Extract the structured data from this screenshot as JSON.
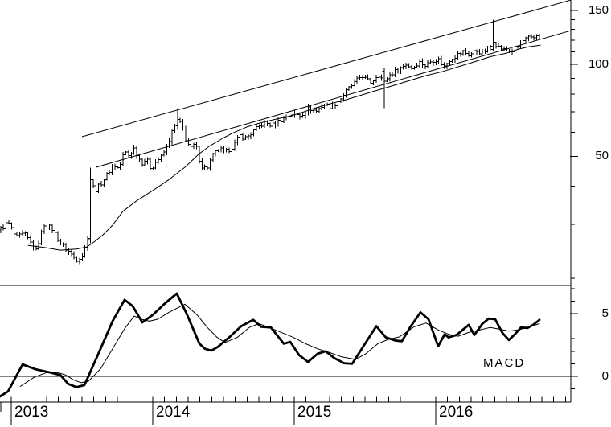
{
  "page": {
    "background": "#ffffff",
    "foreground": "#000000"
  },
  "chart_data": [
    {
      "panel": "price",
      "type": "ohlc",
      "bar_interval": "weekly",
      "x_axis": {
        "range": [
          2012.92,
          2016.955
        ],
        "year_labels": [
          "2013",
          "2014",
          "2015",
          "2016"
        ],
        "year_tick_positions": [
          2013,
          2014,
          2015,
          2016
        ],
        "minor_tick_interval_months": 1
      },
      "y_axis": {
        "side": "right",
        "scale": "log",
        "range": [
          19.35,
          162.2
        ],
        "major_ticks": [
          {
            "value": 50,
            "label": "50"
          },
          {
            "value": 100,
            "label": "100"
          },
          {
            "value": 150,
            "label": "150"
          }
        ],
        "minor_ticks": [
          20,
          30,
          40,
          60,
          70,
          80,
          90,
          110,
          120,
          130,
          140
        ]
      },
      "close_anchors": [
        [
          2012.932,
          29
        ],
        [
          2012.977,
          30.5
        ],
        [
          2013.034,
          27
        ],
        [
          2013.091,
          28
        ],
        [
          2013.176,
          24.5
        ],
        [
          2013.233,
          30
        ],
        [
          2013.29,
          29
        ],
        [
          2013.347,
          26
        ],
        [
          2013.403,
          24.5
        ],
        [
          2013.46,
          23
        ],
        [
          2013.511,
          24
        ],
        [
          2013.54,
          27
        ],
        [
          2013.557,
          42
        ],
        [
          2013.591,
          38.5
        ],
        [
          2013.636,
          41
        ],
        [
          2013.676,
          43.5
        ],
        [
          2013.722,
          47
        ],
        [
          2013.761,
          45.5
        ],
        [
          2013.801,
          52
        ],
        [
          2013.835,
          50
        ],
        [
          2013.864,
          53.5
        ],
        [
          2013.892,
          50.5
        ],
        [
          2013.92,
          47.5
        ],
        [
          2013.955,
          49
        ],
        [
          2013.989,
          45.5
        ],
        [
          2014.023,
          48
        ],
        [
          2014.063,
          50
        ],
        [
          2014.102,
          54
        ],
        [
          2014.142,
          61
        ],
        [
          2014.176,
          66
        ],
        [
          2014.205,
          63
        ],
        [
          2014.233,
          57
        ],
        [
          2014.267,
          53
        ],
        [
          2014.301,
          55
        ],
        [
          2014.341,
          46.5
        ],
        [
          2014.381,
          45.5
        ],
        [
          2014.42,
          50
        ],
        [
          2014.466,
          53
        ],
        [
          2014.511,
          51.5
        ],
        [
          2014.568,
          54
        ],
        [
          2014.614,
          58.5
        ],
        [
          2014.659,
          57.5
        ],
        [
          2014.705,
          60
        ],
        [
          2014.75,
          62.5
        ],
        [
          2014.795,
          64.5
        ],
        [
          2014.841,
          63
        ],
        [
          2014.886,
          65
        ],
        [
          2014.932,
          67
        ],
        [
          2014.989,
          69
        ],
        [
          2015.045,
          68
        ],
        [
          2015.102,
          72
        ],
        [
          2015.153,
          70
        ],
        [
          2015.21,
          74
        ],
        [
          2015.267,
          72.5
        ],
        [
          2015.324,
          77
        ],
        [
          2015.381,
          83
        ],
        [
          2015.438,
          88
        ],
        [
          2015.477,
          92
        ],
        [
          2015.511,
          89
        ],
        [
          2015.545,
          87
        ],
        [
          2015.591,
          93
        ],
        [
          2015.636,
          88
        ],
        [
          2015.682,
          93
        ],
        [
          2015.733,
          96
        ],
        [
          2015.79,
          100
        ],
        [
          2015.835,
          97
        ],
        [
          2015.881,
          102
        ],
        [
          2015.926,
          99
        ],
        [
          2015.972,
          103
        ],
        [
          2016.017,
          104
        ],
        [
          2016.057,
          98
        ],
        [
          2016.102,
          104
        ],
        [
          2016.148,
          107
        ],
        [
          2016.193,
          110
        ],
        [
          2016.239,
          107
        ],
        [
          2016.284,
          111
        ],
        [
          2016.33,
          109
        ],
        [
          2016.375,
          113
        ],
        [
          2016.409,
          118
        ],
        [
          2016.443,
          114
        ],
        [
          2016.489,
          111
        ],
        [
          2016.534,
          110
        ],
        [
          2016.574,
          114
        ],
        [
          2016.614,
          119
        ],
        [
          2016.653,
          122
        ],
        [
          2016.688,
          121
        ],
        [
          2016.727,
          126
        ]
      ],
      "special_bars": [
        {
          "t": 2013.557,
          "open": 27,
          "high": 46,
          "low": 26,
          "close": 42
        },
        {
          "t": 2014.176,
          "open": 63,
          "high": 72,
          "low": 61,
          "close": 66
        },
        {
          "t": 2015.636,
          "open": 95,
          "high": 97,
          "low": 72,
          "close": 88
        },
        {
          "t": 2016.409,
          "open": 112,
          "high": 140,
          "low": 111,
          "close": 118
        }
      ],
      "moving_average": {
        "points": [
          [
            2013.12,
            25.6
          ],
          [
            2013.233,
            25.2
          ],
          [
            2013.347,
            24.7
          ],
          [
            2013.46,
            24.9
          ],
          [
            2013.534,
            25.3
          ],
          [
            2013.591,
            26.4
          ],
          [
            2013.648,
            27.7
          ],
          [
            2013.716,
            29.8
          ],
          [
            2013.79,
            33.1
          ],
          [
            2013.886,
            35.8
          ],
          [
            2014.0,
            38.7
          ],
          [
            2014.114,
            42.0
          ],
          [
            2014.227,
            46.1
          ],
          [
            2014.324,
            50.8
          ],
          [
            2014.398,
            53.9
          ],
          [
            2014.494,
            57.3
          ],
          [
            2014.568,
            59.7
          ],
          [
            2014.665,
            62.4
          ],
          [
            2014.756,
            64.3
          ],
          [
            2014.852,
            65.9
          ],
          [
            2014.949,
            67.4
          ],
          [
            2015.034,
            69.1
          ],
          [
            2015.136,
            71.7
          ],
          [
            2015.25,
            74.3
          ],
          [
            2015.364,
            76.6
          ],
          [
            2015.477,
            79.4
          ],
          [
            2015.591,
            82.4
          ],
          [
            2015.705,
            85.4
          ],
          [
            2015.818,
            88.6
          ],
          [
            2015.932,
            91.9
          ],
          [
            2016.045,
            94.6
          ],
          [
            2016.159,
            98.2
          ],
          [
            2016.273,
            101.9
          ],
          [
            2016.386,
            105.9
          ],
          [
            2016.5,
            108.8
          ],
          [
            2016.585,
            112.1
          ],
          [
            2016.659,
            114.2
          ],
          [
            2016.739,
            115.5
          ]
        ]
      },
      "trendlines": [
        {
          "name": "upper-channel",
          "from": [
            2013.5,
            58.0
          ],
          "to": [
            2016.955,
            162.2
          ]
        },
        {
          "name": "lower-channel",
          "from": [
            2013.6,
            46.1
          ],
          "to": [
            2016.955,
            128.9
          ]
        }
      ]
    },
    {
      "panel": "indicator",
      "type": "line",
      "label": "MACD",
      "y_axis": {
        "side": "right",
        "scale": "linear",
        "range": [
          -2.05,
          7.24
        ],
        "major_ticks": [
          {
            "value": 0,
            "label": "0"
          },
          {
            "value": 5,
            "label": "5"
          }
        ],
        "minor_ticks": [
          -1,
          1,
          2,
          3,
          4,
          6,
          7
        ]
      },
      "zero_line": 0,
      "series": [
        {
          "name": "macd-line",
          "weight": "thick",
          "points": [
            [
              2012.92,
              -1.6
            ],
            [
              2012.977,
              -1.2
            ],
            [
              2013.08,
              0.95
            ],
            [
              2013.176,
              0.55
            ],
            [
              2013.278,
              0.3
            ],
            [
              2013.347,
              0.1
            ],
            [
              2013.403,
              -0.6
            ],
            [
              2013.46,
              -0.85
            ],
            [
              2013.517,
              -0.7
            ],
            [
              2013.545,
              0.0
            ],
            [
              2013.631,
              2.2
            ],
            [
              2013.716,
              4.4
            ],
            [
              2013.801,
              6.1
            ],
            [
              2013.858,
              5.6
            ],
            [
              2013.926,
              4.3
            ],
            [
              2014.0,
              4.9
            ],
            [
              2014.085,
              5.8
            ],
            [
              2014.17,
              6.6
            ],
            [
              2014.239,
              5.0
            ],
            [
              2014.33,
              2.6
            ],
            [
              2014.369,
              2.2
            ],
            [
              2014.415,
              2.05
            ],
            [
              2014.46,
              2.35
            ],
            [
              2014.54,
              3.1
            ],
            [
              2014.625,
              4.0
            ],
            [
              2014.71,
              4.5
            ],
            [
              2014.767,
              3.95
            ],
            [
              2014.835,
              3.9
            ],
            [
              2014.926,
              2.6
            ],
            [
              2014.972,
              2.75
            ],
            [
              2015.034,
              1.7
            ],
            [
              2015.097,
              1.15
            ],
            [
              2015.165,
              1.8
            ],
            [
              2015.222,
              2.0
            ],
            [
              2015.284,
              1.45
            ],
            [
              2015.352,
              1.05
            ],
            [
              2015.409,
              1.0
            ],
            [
              2015.477,
              2.2
            ],
            [
              2015.58,
              4.0
            ],
            [
              2015.648,
              3.1
            ],
            [
              2015.716,
              2.85
            ],
            [
              2015.761,
              2.8
            ],
            [
              2015.818,
              3.9
            ],
            [
              2015.892,
              5.1
            ],
            [
              2015.949,
              4.55
            ],
            [
              2016.017,
              2.4
            ],
            [
              2016.063,
              3.35
            ],
            [
              2016.091,
              3.1
            ],
            [
              2016.148,
              3.3
            ],
            [
              2016.233,
              4.1
            ],
            [
              2016.273,
              3.3
            ],
            [
              2016.33,
              4.2
            ],
            [
              2016.375,
              4.6
            ],
            [
              2016.42,
              4.55
            ],
            [
              2016.472,
              3.45
            ],
            [
              2016.517,
              2.9
            ],
            [
              2016.563,
              3.4
            ],
            [
              2016.602,
              3.9
            ],
            [
              2016.648,
              3.85
            ],
            [
              2016.688,
              4.1
            ],
            [
              2016.733,
              4.5
            ]
          ]
        },
        {
          "name": "signal-line",
          "weight": "thin",
          "points": [
            [
              2013.063,
              -0.8
            ],
            [
              2013.165,
              -0.05
            ],
            [
              2013.25,
              0.3
            ],
            [
              2013.33,
              0.3
            ],
            [
              2013.386,
              0.1
            ],
            [
              2013.443,
              -0.3
            ],
            [
              2013.494,
              -0.5
            ],
            [
              2013.545,
              -0.4
            ],
            [
              2013.631,
              0.6
            ],
            [
              2013.716,
              2.2
            ],
            [
              2013.801,
              3.8
            ],
            [
              2013.869,
              4.8
            ],
            [
              2013.92,
              4.55
            ],
            [
              2013.977,
              4.4
            ],
            [
              2014.034,
              4.55
            ],
            [
              2014.114,
              5.1
            ],
            [
              2014.227,
              5.75
            ],
            [
              2014.313,
              4.9
            ],
            [
              2014.386,
              3.9
            ],
            [
              2014.455,
              3.1
            ],
            [
              2014.511,
              2.7
            ],
            [
              2014.597,
              3.1
            ],
            [
              2014.682,
              3.9
            ],
            [
              2014.75,
              4.2
            ],
            [
              2014.824,
              3.9
            ],
            [
              2014.909,
              3.5
            ],
            [
              2014.994,
              3.1
            ],
            [
              2015.08,
              2.6
            ],
            [
              2015.165,
              2.2
            ],
            [
              2015.25,
              1.9
            ],
            [
              2015.335,
              1.55
            ],
            [
              2015.432,
              1.35
            ],
            [
              2015.506,
              1.8
            ],
            [
              2015.591,
              2.6
            ],
            [
              2015.665,
              2.95
            ],
            [
              2015.744,
              3.15
            ],
            [
              2015.847,
              3.95
            ],
            [
              2015.932,
              4.25
            ],
            [
              2016.017,
              3.7
            ],
            [
              2016.091,
              3.35
            ],
            [
              2016.159,
              3.2
            ],
            [
              2016.233,
              3.5
            ],
            [
              2016.313,
              3.7
            ],
            [
              2016.386,
              3.9
            ],
            [
              2016.455,
              3.75
            ],
            [
              2016.517,
              3.6
            ],
            [
              2016.585,
              3.7
            ],
            [
              2016.659,
              3.95
            ],
            [
              2016.733,
              4.2
            ]
          ]
        }
      ]
    }
  ]
}
